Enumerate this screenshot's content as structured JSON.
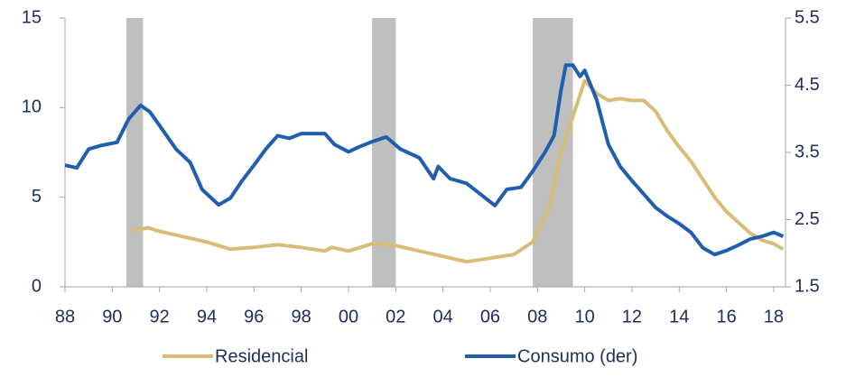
{
  "chart_data": {
    "type": "line",
    "xlim": [
      1988,
      2018.5
    ],
    "xticks": [
      {
        "value": 1988,
        "label": "88"
      },
      {
        "value": 1990,
        "label": "90"
      },
      {
        "value": 1992,
        "label": "92"
      },
      {
        "value": 1994,
        "label": "94"
      },
      {
        "value": 1996,
        "label": "96"
      },
      {
        "value": 1998,
        "label": "98"
      },
      {
        "value": 2000,
        "label": "00"
      },
      {
        "value": 2002,
        "label": "02"
      },
      {
        "value": 2004,
        "label": "04"
      },
      {
        "value": 2006,
        "label": "06"
      },
      {
        "value": 2008,
        "label": "08"
      },
      {
        "value": 2010,
        "label": "10"
      },
      {
        "value": 2012,
        "label": "12"
      },
      {
        "value": 2014,
        "label": "14"
      },
      {
        "value": 2016,
        "label": "16"
      },
      {
        "value": 2018,
        "label": "18"
      }
    ],
    "ylim": [
      0,
      15
    ],
    "yticks": [
      0,
      5,
      10,
      15
    ],
    "y2lim": [
      1.5,
      5.5
    ],
    "y2ticks": [
      1.5,
      2.5,
      3.5,
      4.5,
      5.5
    ],
    "shaded_periods": [
      [
        1990.6,
        1991.3
      ],
      [
        2001.0,
        2002.0
      ],
      [
        2007.8,
        2009.5
      ]
    ],
    "shade_color": "#bfbfbf",
    "legend": "bottom",
    "series": [
      {
        "name": "Residencial",
        "color": "#d8bd78",
        "x": [
          1990.8,
          1991.5,
          1992,
          1993,
          1994,
          1995,
          1996,
          1997,
          1998,
          1999,
          1999.3,
          2000,
          2001,
          2002,
          2003,
          2004,
          2005,
          2006,
          2007,
          2007.8,
          2008.5,
          2009,
          2009.5,
          2010,
          2010.5,
          2011,
          2011.5,
          2012,
          2012.5,
          2013,
          2013.5,
          2014,
          2014.5,
          2015,
          2015.5,
          2016,
          2016.5,
          2017,
          2017.5,
          2018,
          2018.4
        ],
        "values": [
          3.1,
          3.3,
          3.1,
          2.8,
          2.5,
          2.1,
          2.2,
          2.35,
          2.2,
          2.0,
          2.2,
          2.0,
          2.4,
          2.3,
          2.0,
          1.7,
          1.4,
          1.6,
          1.8,
          2.5,
          4.5,
          7.5,
          9.5,
          11.5,
          10.8,
          10.4,
          10.5,
          10.4,
          10.4,
          9.8,
          8.7,
          7.8,
          7.0,
          6.0,
          5.0,
          4.2,
          3.6,
          3.0,
          2.6,
          2.4,
          2.1
        ]
      },
      {
        "name": "Consumo (der)",
        "color": "#1f5fae",
        "axis": "y2",
        "x": [
          1988,
          1988.5,
          1989,
          1989.5,
          1990.2,
          1990.7,
          1991.2,
          1991.6,
          1992,
          1992.7,
          1993.3,
          1993.8,
          1994.5,
          1995,
          1995.5,
          1996,
          1996.5,
          1997,
          1997.5,
          1998,
          1998.7,
          1999,
          1999.4,
          2000,
          2000.5,
          2001,
          2001.6,
          2002.2,
          2003,
          2003.6,
          2003.8,
          2004.3,
          2005,
          2005.8,
          2006.2,
          2006.7,
          2007.3,
          2007.8,
          2008.3,
          2008.7,
          2009,
          2009.2,
          2009.5,
          2009.8,
          2010,
          2010.5,
          2011,
          2011.5,
          2012,
          2012.5,
          2013,
          2013.5,
          2014,
          2014.5,
          2015,
          2015.5,
          2016,
          2016.5,
          2017,
          2017.5,
          2018,
          2018.4
        ],
        "values": [
          3.31,
          3.27,
          3.55,
          3.6,
          3.65,
          4.0,
          4.2,
          4.1,
          3.9,
          3.55,
          3.35,
          2.95,
          2.72,
          2.82,
          3.08,
          3.31,
          3.55,
          3.75,
          3.71,
          3.78,
          3.78,
          3.78,
          3.62,
          3.51,
          3.59,
          3.66,
          3.73,
          3.55,
          3.42,
          3.11,
          3.29,
          3.11,
          3.04,
          2.82,
          2.71,
          2.95,
          2.98,
          3.22,
          3.49,
          3.75,
          4.43,
          4.8,
          4.8,
          4.63,
          4.72,
          4.29,
          3.62,
          3.29,
          3.08,
          2.88,
          2.68,
          2.55,
          2.44,
          2.31,
          2.08,
          1.98,
          2.04,
          2.12,
          2.21,
          2.25,
          2.31,
          2.25
        ]
      }
    ]
  }
}
